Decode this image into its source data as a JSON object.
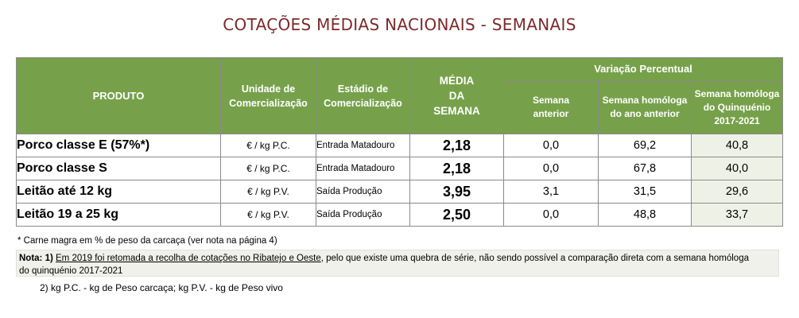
{
  "title": "COTAÇÕES MÉDIAS NACIONAIS - SEMANAIS",
  "header": {
    "produto": "PRODUTO",
    "unidade_line1": "Unidade de",
    "unidade_line2": "Comercialização",
    "estadio_line1": "Estádio de",
    "estadio_line2": "Comercialização",
    "media_line1": "MÉDIA",
    "media_line2": "DA",
    "media_line3": "SEMANA",
    "variacao": "Variação Percentual",
    "sem_anterior_line1": "Semana",
    "sem_anterior_line2": "anterior",
    "sem_homologa_ano_line1": "Semana homóloga",
    "sem_homologa_ano_line2": "do ano anterior",
    "sem_homologa_quin_line1": "Semana homóloga",
    "sem_homologa_quin_line2": "do Quinquénio",
    "sem_homologa_quin_line3": "2017-2021"
  },
  "rows": [
    {
      "produto": "Porco classe E (57%*)",
      "unidade": "€ / kg P.C.",
      "estadio": "Entrada Matadouro",
      "media": "2,18",
      "anterior": "0,0",
      "ano_anterior": "69,2",
      "quinquenio": "40,8"
    },
    {
      "produto": "Porco classe S",
      "unidade": "€ / kg P.C.",
      "estadio": "Entrada Matadouro",
      "media": "2,18",
      "anterior": "0,0",
      "ano_anterior": "67,8",
      "quinquenio": "40,0"
    },
    {
      "produto": "Leitão até 12 kg",
      "unidade": "€ / kg P.V.",
      "estadio": "Saída Produção",
      "media": "3,95",
      "anterior": "3,1",
      "ano_anterior": "31,5",
      "quinquenio": "29,6"
    },
    {
      "produto": "Leitão 19 a 25 kg",
      "unidade": "€ / kg P.V.",
      "estadio": "Saída Produção",
      "media": "2,50",
      "anterior": "0,0",
      "ano_anterior": "48,8",
      "quinquenio": "33,7"
    }
  ],
  "footnote": "* Carne magra em % de peso da carcaça (ver nota na página 4)",
  "nota": {
    "label": "Nota: 1)",
    "underlined": "Em 2019 foi retomada a recolha de cotações no Ribatejo e Oeste",
    "rest": ", pelo que existe uma quebra de série, não sendo possível a comparação direta com a semana homóloga",
    "line2": "do quinquénio 2017-2021"
  },
  "legend": "2) kg P.C. - kg de Peso carcaça; kg P.V. - kg de Peso vivo"
}
